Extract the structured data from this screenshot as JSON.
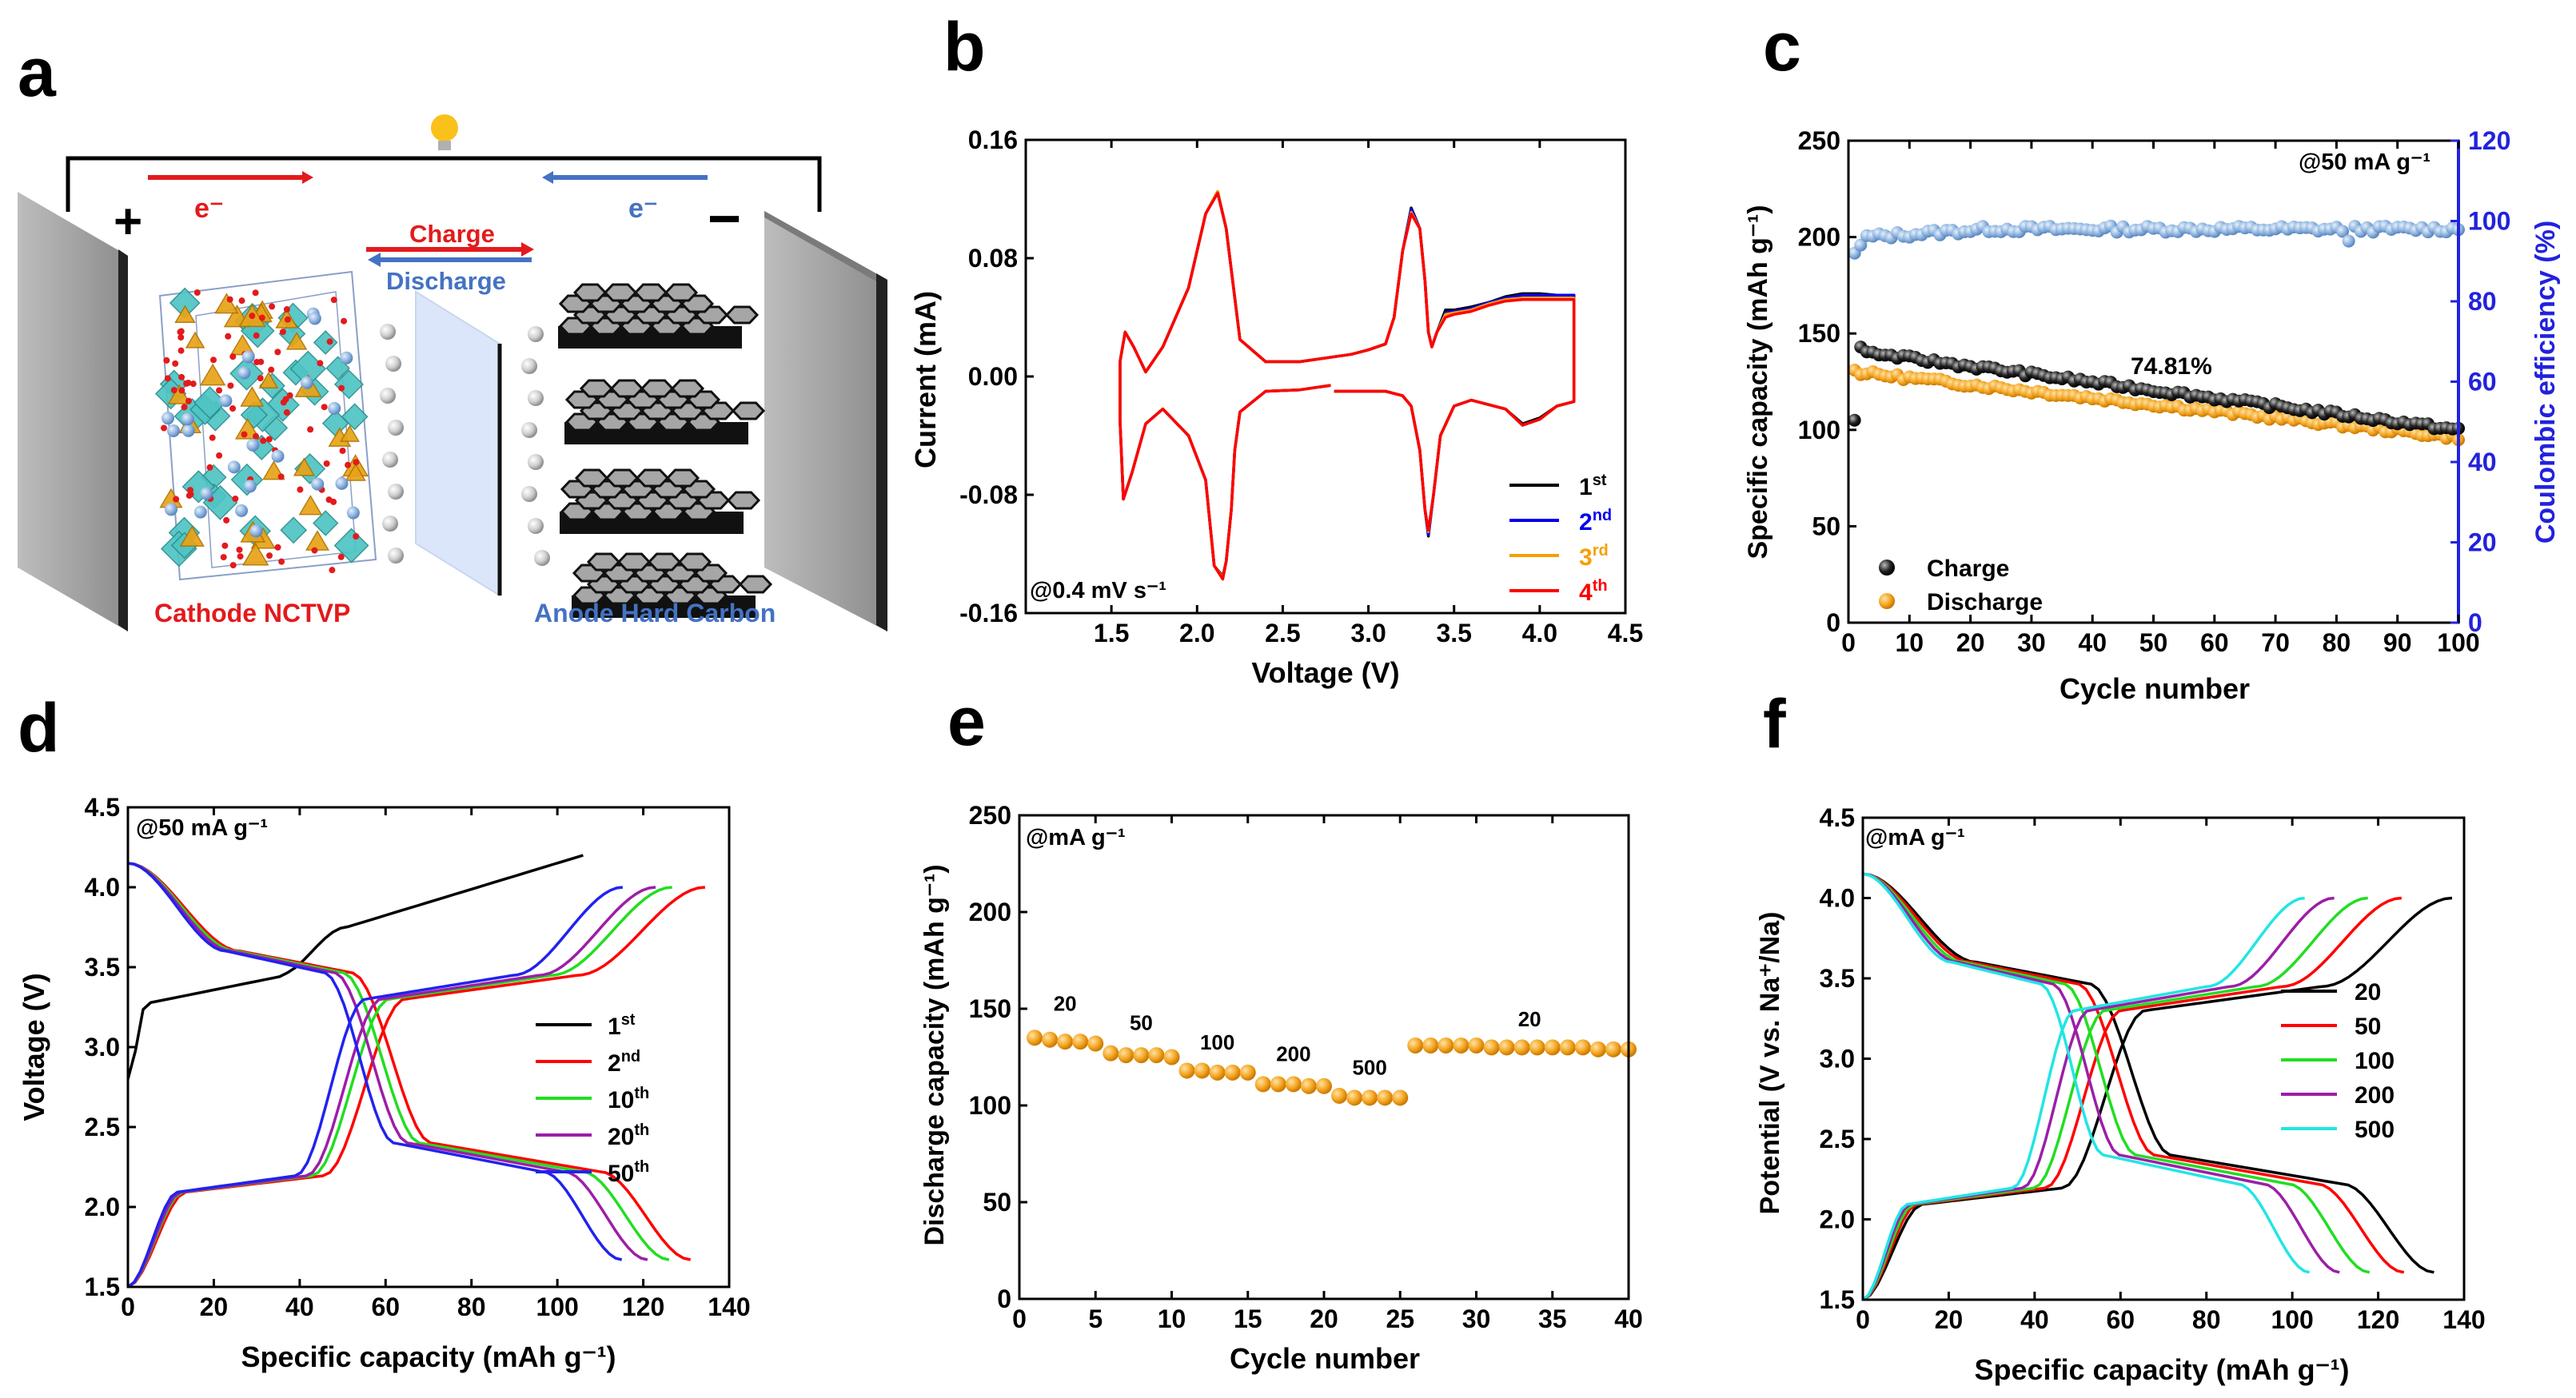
{
  "panel_letters": [
    "a",
    "b",
    "c",
    "d",
    "e",
    "f"
  ],
  "schematic": {
    "electron_left": "e⁻",
    "electron_right": "e⁻",
    "plus_sign": "+",
    "minus_sign": "−",
    "charge_label": "Charge",
    "discharge_label": "Discharge",
    "cathode_label": "Cathode NCTVP",
    "anode_label": "Anode Hard Carbon",
    "colors": {
      "red": "#e31a1c",
      "blue": "#4472c4",
      "electrode": "#9e9e9e",
      "octahedra": "#4fc4c4",
      "tetrahedra": "#e8a317",
      "hexagon": "#a6a6a6"
    }
  },
  "chart_data": [
    {
      "id": "b",
      "type": "line",
      "title": "",
      "xlabel": "Voltage (V)",
      "ylabel": "Current (mA)",
      "xlim": [
        1.0,
        4.5
      ],
      "ylim": [
        -0.16,
        0.16
      ],
      "xticks": [
        1.5,
        2.0,
        2.5,
        3.0,
        3.5,
        4.0,
        4.5
      ],
      "yticks": [
        -0.16,
        -0.08,
        0.0,
        0.08,
        0.16
      ],
      "xticklabels": [
        "1.5",
        "2.0",
        "2.5",
        "3.0",
        "3.5",
        "4.0",
        "4.5"
      ],
      "yticklabels": [
        "-0.16",
        "-0.08",
        "0.00",
        "0.08",
        "0.16"
      ],
      "annotation": "@0.4 mV s⁻¹",
      "legend_position": "bottom-right",
      "series": [
        {
          "name": "1",
          "sup": "st",
          "color": "#000000",
          "x": [
            2.78,
            2.6,
            2.4,
            2.25,
            2.22,
            2.2,
            2.17,
            2.15,
            2.1,
            2.05,
            1.95,
            1.8,
            1.7,
            1.62,
            1.57,
            1.55,
            1.55,
            1.58,
            1.63,
            1.7,
            1.8,
            1.95,
            2.05,
            2.12,
            2.17,
            2.25,
            2.4,
            2.6,
            2.9,
            3.0,
            3.1,
            3.15,
            3.2,
            3.25,
            3.3,
            3.33,
            3.35,
            3.37,
            3.4,
            3.45,
            3.5,
            3.6,
            3.7,
            3.8,
            3.9,
            4.0,
            4.1,
            4.2,
            4.2,
            4.1,
            4.0,
            3.9,
            3.8,
            3.6,
            3.5,
            3.42,
            3.38,
            3.35,
            3.33,
            3.3,
            3.25,
            3.2,
            3.1,
            3.0,
            2.8
          ],
          "y": [
            -0.006,
            -0.009,
            -0.01,
            -0.024,
            -0.05,
            -0.09,
            -0.125,
            -0.135,
            -0.128,
            -0.07,
            -0.04,
            -0.022,
            -0.032,
            -0.065,
            -0.083,
            -0.03,
            0.01,
            0.03,
            0.02,
            0.003,
            0.02,
            0.06,
            0.11,
            0.125,
            0.1,
            0.025,
            0.01,
            0.01,
            0.015,
            0.018,
            0.022,
            0.04,
            0.085,
            0.114,
            0.1,
            0.065,
            0.03,
            0.02,
            0.03,
            0.045,
            0.045,
            0.047,
            0.05,
            0.054,
            0.056,
            0.056,
            0.055,
            0.055,
            -0.017,
            -0.02,
            -0.028,
            -0.032,
            -0.022,
            -0.016,
            -0.02,
            -0.04,
            -0.08,
            -0.108,
            -0.09,
            -0.05,
            -0.02,
            -0.013,
            -0.01,
            -0.01,
            -0.01
          ]
        },
        {
          "name": "2",
          "sup": "nd",
          "color": "#0000ee",
          "x": [
            2.78,
            2.6,
            2.4,
            2.25,
            2.22,
            2.2,
            2.17,
            2.15,
            2.1,
            2.05,
            1.95,
            1.8,
            1.7,
            1.62,
            1.57,
            1.55,
            1.55,
            1.58,
            1.63,
            1.7,
            1.8,
            1.95,
            2.05,
            2.12,
            2.17,
            2.25,
            2.4,
            2.6,
            2.9,
            3.0,
            3.1,
            3.15,
            3.2,
            3.25,
            3.3,
            3.33,
            3.35,
            3.37,
            3.4,
            3.45,
            3.5,
            3.6,
            3.7,
            3.8,
            3.9,
            4.0,
            4.1,
            4.2,
            4.2,
            4.1,
            4.0,
            3.9,
            3.8,
            3.6,
            3.5,
            3.42,
            3.38,
            3.35,
            3.33,
            3.3,
            3.25,
            3.2,
            3.1,
            3.0,
            2.8
          ],
          "y": [
            -0.006,
            -0.009,
            -0.01,
            -0.024,
            -0.05,
            -0.09,
            -0.125,
            -0.136,
            -0.128,
            -0.07,
            -0.04,
            -0.022,
            -0.032,
            -0.065,
            -0.083,
            -0.03,
            0.01,
            0.03,
            0.02,
            0.003,
            0.02,
            0.06,
            0.11,
            0.125,
            0.1,
            0.025,
            0.01,
            0.01,
            0.015,
            0.018,
            0.022,
            0.04,
            0.085,
            0.113,
            0.1,
            0.065,
            0.03,
            0.02,
            0.03,
            0.043,
            0.044,
            0.046,
            0.05,
            0.053,
            0.055,
            0.055,
            0.055,
            0.055,
            -0.017,
            -0.02,
            -0.029,
            -0.033,
            -0.022,
            -0.016,
            -0.02,
            -0.04,
            -0.08,
            -0.107,
            -0.09,
            -0.05,
            -0.02,
            -0.013,
            -0.01,
            -0.01,
            -0.01
          ]
        },
        {
          "name": "3",
          "sup": "rd",
          "color": "#f5a000",
          "x": [
            2.78,
            2.6,
            2.4,
            2.25,
            2.22,
            2.2,
            2.17,
            2.15,
            2.1,
            2.05,
            1.95,
            1.8,
            1.7,
            1.62,
            1.57,
            1.55,
            1.55,
            1.58,
            1.63,
            1.7,
            1.8,
            1.95,
            2.05,
            2.12,
            2.17,
            2.25,
            2.4,
            2.6,
            2.9,
            3.0,
            3.1,
            3.15,
            3.2,
            3.25,
            3.3,
            3.33,
            3.35,
            3.37,
            3.4,
            3.45,
            3.5,
            3.6,
            3.7,
            3.8,
            3.9,
            4.0,
            4.1,
            4.2,
            4.2,
            4.1,
            4.0,
            3.9,
            3.8,
            3.6,
            3.5,
            3.42,
            3.38,
            3.35,
            3.33,
            3.3,
            3.25,
            3.2,
            3.1,
            3.0,
            2.8
          ],
          "y": [
            -0.006,
            -0.009,
            -0.01,
            -0.024,
            -0.05,
            -0.09,
            -0.125,
            -0.136,
            -0.128,
            -0.07,
            -0.04,
            -0.022,
            -0.032,
            -0.065,
            -0.083,
            -0.03,
            0.01,
            0.03,
            0.02,
            0.003,
            0.02,
            0.06,
            0.11,
            0.125,
            0.1,
            0.025,
            0.01,
            0.01,
            0.015,
            0.018,
            0.022,
            0.04,
            0.085,
            0.111,
            0.1,
            0.065,
            0.03,
            0.02,
            0.03,
            0.042,
            0.043,
            0.045,
            0.049,
            0.052,
            0.053,
            0.053,
            0.053,
            0.053,
            -0.017,
            -0.02,
            -0.029,
            -0.033,
            -0.022,
            -0.016,
            -0.02,
            -0.04,
            -0.08,
            -0.105,
            -0.09,
            -0.05,
            -0.02,
            -0.013,
            -0.01,
            -0.01,
            -0.01
          ]
        },
        {
          "name": "4",
          "sup": "th",
          "color": "#ff0000",
          "x": [
            2.78,
            2.6,
            2.4,
            2.25,
            2.22,
            2.2,
            2.17,
            2.15,
            2.1,
            2.05,
            1.95,
            1.8,
            1.7,
            1.62,
            1.57,
            1.55,
            1.55,
            1.58,
            1.63,
            1.7,
            1.8,
            1.95,
            2.05,
            2.12,
            2.17,
            2.25,
            2.4,
            2.6,
            2.9,
            3.0,
            3.1,
            3.15,
            3.2,
            3.25,
            3.3,
            3.33,
            3.35,
            3.37,
            3.4,
            3.45,
            3.5,
            3.6,
            3.7,
            3.8,
            3.9,
            4.0,
            4.1,
            4.2,
            4.2,
            4.1,
            4.0,
            3.9,
            3.8,
            3.6,
            3.5,
            3.42,
            3.38,
            3.35,
            3.33,
            3.3,
            3.25,
            3.2,
            3.1,
            3.0,
            2.8
          ],
          "y": [
            -0.006,
            -0.009,
            -0.01,
            -0.024,
            -0.05,
            -0.09,
            -0.125,
            -0.137,
            -0.128,
            -0.07,
            -0.04,
            -0.022,
            -0.032,
            -0.065,
            -0.083,
            -0.03,
            0.01,
            0.03,
            0.02,
            0.003,
            0.02,
            0.06,
            0.11,
            0.124,
            0.1,
            0.025,
            0.01,
            0.01,
            0.015,
            0.018,
            0.022,
            0.04,
            0.085,
            0.11,
            0.1,
            0.065,
            0.03,
            0.02,
            0.03,
            0.04,
            0.042,
            0.044,
            0.048,
            0.051,
            0.052,
            0.052,
            0.052,
            0.052,
            -0.017,
            -0.02,
            -0.029,
            -0.033,
            -0.022,
            -0.016,
            -0.02,
            -0.04,
            -0.08,
            -0.104,
            -0.09,
            -0.05,
            -0.02,
            -0.013,
            -0.01,
            -0.01,
            -0.01
          ]
        }
      ]
    },
    {
      "id": "c",
      "type": "scatter",
      "title": "",
      "xlabel": "Cycle number",
      "ylabel": "Specific capacity (mAh g⁻¹)",
      "y2label": "Coulombic efficiency (%)",
      "xlim": [
        0,
        100
      ],
      "ylim": [
        0,
        250
      ],
      "y2lim": [
        0,
        120
      ],
      "xticks": [
        0,
        10,
        20,
        30,
        40,
        50,
        60,
        70,
        80,
        90,
        100
      ],
      "yticks": [
        0,
        50,
        100,
        150,
        200,
        250
      ],
      "y2ticks": [
        0,
        20,
        40,
        60,
        80,
        100,
        120
      ],
      "annotation": "@50 mA g⁻¹",
      "retention_label": "74.81%",
      "legend_position": "bottom-left",
      "legend": [
        "Charge",
        "Discharge"
      ],
      "series": [
        {
          "name": "Charge",
          "color": "#111111",
          "axis": "left",
          "first": 105,
          "second": 143,
          "start": 140,
          "end": 100
        },
        {
          "name": "Discharge",
          "color": "#f5a623",
          "axis": "left",
          "first": 131,
          "second": 131,
          "start": 130,
          "end": 96
        },
        {
          "name": "Coulombic efficiency",
          "color": "#7fa7d6",
          "axis": "right",
          "first": 92,
          "second": 94,
          "start": 96,
          "end": 98
        }
      ]
    },
    {
      "id": "d",
      "type": "line",
      "title": "",
      "xlabel": "Specific capacity (mAh g⁻¹)",
      "ylabel": "Voltage (V)",
      "xlim": [
        0,
        140
      ],
      "ylim": [
        1.5,
        4.5
      ],
      "xticks": [
        0,
        20,
        40,
        60,
        80,
        100,
        120,
        140
      ],
      "yticks": [
        1.5,
        2.0,
        2.5,
        3.0,
        3.5,
        4.0,
        4.5
      ],
      "annotation": "@50 mA g⁻¹",
      "legend_position": "center-right",
      "series": [
        {
          "name": "1",
          "sup": "st",
          "color": "#000000",
          "charge_cap": 106,
          "discharge_cap": null,
          "first": true
        },
        {
          "name": "2",
          "sup": "nd",
          "color": "#ff0000",
          "charge_cap": 140,
          "discharge_cap": 131
        },
        {
          "name": "10",
          "sup": "th",
          "color": "#22dd22",
          "charge_cap": 132,
          "discharge_cap": 126
        },
        {
          "name": "20",
          "sup": "th",
          "color": "#9c1ea8",
          "charge_cap": 128,
          "discharge_cap": 121
        },
        {
          "name": "50",
          "sup": "th",
          "color": "#2222ee",
          "charge_cap": 120,
          "discharge_cap": 115
        }
      ]
    },
    {
      "id": "e",
      "type": "scatter",
      "title": "",
      "xlabel": "Cycle number",
      "ylabel": "Discharge capacity (mAh g⁻¹)",
      "xlim": [
        0,
        40
      ],
      "ylim": [
        0,
        250
      ],
      "xticks": [
        0,
        5,
        10,
        15,
        20,
        25,
        30,
        35,
        40
      ],
      "yticks": [
        0,
        50,
        100,
        150,
        200,
        250
      ],
      "annotation": "@mA g⁻¹",
      "rate_labels": [
        {
          "text": "20",
          "x": 3,
          "y": 149
        },
        {
          "text": "50",
          "x": 8,
          "y": 139
        },
        {
          "text": "100",
          "x": 13,
          "y": 129
        },
        {
          "text": "200",
          "x": 18,
          "y": 123
        },
        {
          "text": "500",
          "x": 23,
          "y": 116
        },
        {
          "text": "20",
          "x": 33.5,
          "y": 141
        }
      ],
      "series": [
        {
          "name": "Discharge capacity",
          "color": "#f5a623",
          "x": [
            1,
            2,
            3,
            4,
            5,
            6,
            7,
            8,
            9,
            10,
            11,
            12,
            13,
            14,
            15,
            16,
            17,
            18,
            19,
            20,
            21,
            22,
            23,
            24,
            25,
            26,
            27,
            28,
            29,
            30,
            31,
            32,
            33,
            34,
            35,
            36,
            37,
            38,
            39,
            40
          ],
          "values": [
            135,
            134,
            133,
            133,
            132,
            127,
            126,
            126,
            126,
            125,
            118,
            118,
            117,
            117,
            117,
            111,
            111,
            111,
            110,
            110,
            105,
            104,
            104,
            104,
            104,
            131,
            131,
            131,
            131,
            131,
            130,
            130,
            130,
            130,
            130,
            130,
            130,
            129,
            129,
            129
          ]
        }
      ]
    },
    {
      "id": "f",
      "type": "line",
      "title": "",
      "xlabel": "Specific capacity (mAh g⁻¹)",
      "ylabel": "Potential (V vs. Na⁺/Na)",
      "xlim": [
        0,
        140
      ],
      "ylim": [
        1.5,
        4.5
      ],
      "xticks": [
        0,
        20,
        40,
        60,
        80,
        100,
        120,
        140
      ],
      "yticks": [
        1.5,
        2.0,
        2.5,
        3.0,
        3.5,
        4.0,
        4.5
      ],
      "annotation": "@mA g⁻¹",
      "legend_position": "center-right",
      "series": [
        {
          "name": "20",
          "color": "#000000",
          "charge_cap": 140,
          "discharge_cap": 133
        },
        {
          "name": "50",
          "color": "#ff0000",
          "charge_cap": 128,
          "discharge_cap": 126
        },
        {
          "name": "100",
          "color": "#22dd22",
          "charge_cap": 120,
          "discharge_cap": 118
        },
        {
          "name": "200",
          "color": "#9c1ea8",
          "charge_cap": 112,
          "discharge_cap": 111
        },
        {
          "name": "500",
          "color": "#22e5e5",
          "charge_cap": 105,
          "discharge_cap": 104
        }
      ]
    }
  ]
}
